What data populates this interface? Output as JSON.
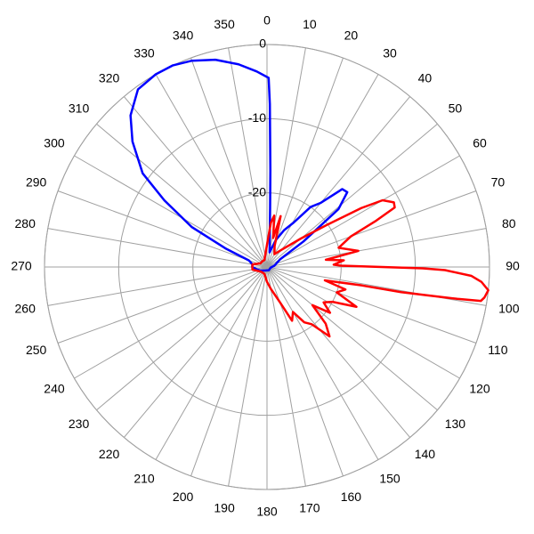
{
  "chart_data": {
    "type": "polar",
    "direction": "clockwise",
    "zero_location": "top",
    "rlim": [
      -30,
      0
    ],
    "rticks": [
      -20,
      -10,
      0
    ],
    "thetaticks": [
      0,
      10,
      20,
      30,
      40,
      50,
      60,
      70,
      80,
      90,
      100,
      110,
      120,
      130,
      140,
      150,
      160,
      170,
      180,
      190,
      200,
      210,
      220,
      230,
      240,
      250,
      260,
      270,
      280,
      290,
      300,
      310,
      320,
      330,
      340,
      350
    ],
    "grid": true,
    "series": [
      {
        "color": "#0000ff",
        "x": [
          0.5,
          1,
          2,
          3,
          10,
          18,
          25,
          31,
          36,
          40,
          44,
          47,
          51,
          55,
          60,
          80,
          100,
          150,
          200,
          240,
          260,
          270,
          280,
          290,
          294,
          298,
          303,
          307,
          313,
          318,
          324,
          330,
          335,
          340,
          346,
          352,
          357
        ],
        "values": [
          -4.5,
          -8,
          -17,
          -22,
          -28,
          -26.2,
          -24.5,
          -23,
          -20,
          -18.7,
          -15.4,
          -15.2,
          -17.6,
          -24,
          -28,
          -29,
          -29.5,
          -29.5,
          -29.5,
          -29,
          -28.5,
          -28,
          -28,
          -27.4,
          -24,
          -18.5,
          -13.5,
          -9,
          -5.2,
          -2.5,
          -0.4,
          0,
          0,
          -0.4,
          -1.2,
          -2.4,
          -3.6
        ]
      },
      {
        "color": "#ff0000",
        "x": [
          0,
          5,
          8,
          12,
          15,
          20,
          30,
          40,
          50,
          55,
          58,
          60,
          63,
          65,
          67,
          70,
          75,
          80,
          83,
          85,
          88,
          89,
          90.5,
          91,
          92.5,
          94,
          96,
          98,
          99,
          99.5,
          100,
          100.6,
          101,
          103,
          106,
          110,
          114,
          118,
          122,
          126,
          130,
          134,
          138,
          142,
          146,
          150,
          155,
          160,
          170,
          180,
          200,
          230,
          260,
          280,
          300,
          320,
          340,
          355
        ],
        "values": [
          -27,
          -24,
          -23,
          -26,
          -22.9,
          -27,
          -28,
          -27,
          -24,
          -20,
          -15,
          -12,
          -10.8,
          -11,
          -14,
          -18,
          -20,
          -17.5,
          -22,
          -19.6,
          -21,
          -20,
          -9,
          -6,
          -2.4,
          -1,
          0,
          -0.4,
          -0.8,
          -4,
          -8,
          -11.6,
          -17,
          -22,
          -19,
          -20,
          -16.8,
          -20,
          -21,
          -19.5,
          -22,
          -19,
          -17.4,
          -20.2,
          -21,
          -23,
          -22,
          -25,
          -27,
          -28,
          -29,
          -29,
          -28,
          -28,
          -29,
          -29,
          -29,
          -28
        ]
      }
    ]
  }
}
